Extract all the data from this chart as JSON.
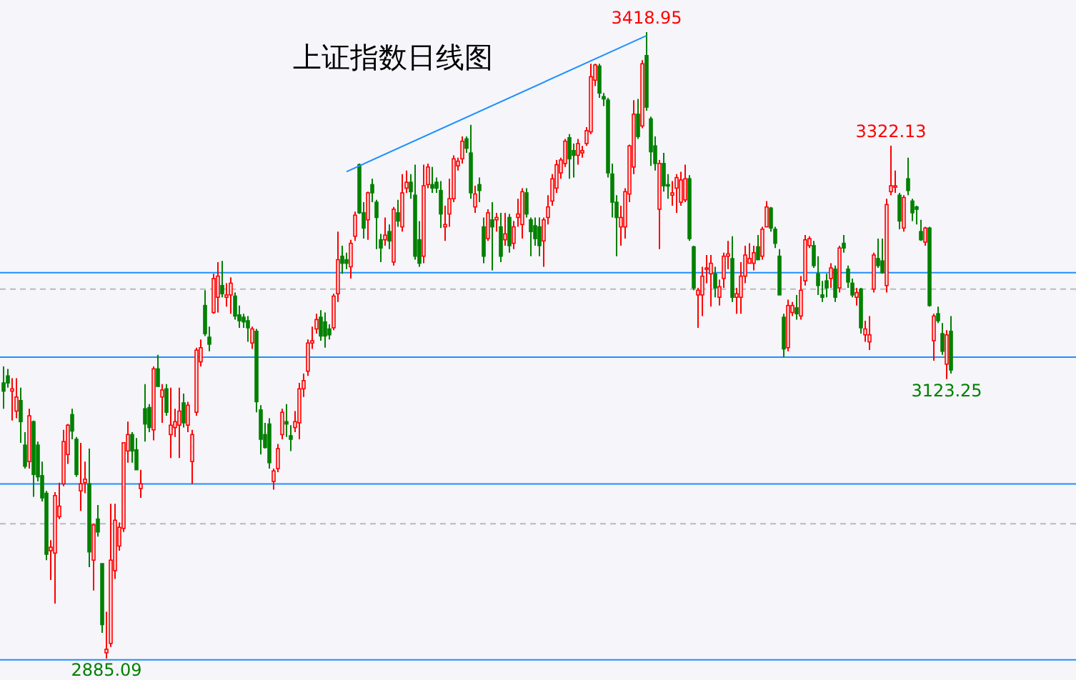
{
  "chart_data": {
    "type": "candlestick",
    "title": "上证指数日线图",
    "categories": [
      null,
      null,
      null,
      null,
      null,
      null,
      null,
      null,
      null,
      null,
      null,
      null,
      null,
      null,
      null,
      null,
      null,
      null,
      null,
      null,
      null,
      null,
      null,
      null,
      null,
      null,
      null,
      null,
      null,
      null,
      null,
      null,
      null,
      null,
      null,
      null,
      null,
      null,
      null,
      null,
      null,
      null,
      null,
      null,
      null,
      null,
      null,
      null,
      null,
      null,
      null,
      null,
      null,
      null,
      null,
      null,
      null,
      null,
      null,
      null,
      null,
      null,
      null,
      null,
      null,
      null,
      null,
      null,
      null,
      null,
      null,
      null,
      null,
      null,
      null,
      null,
      null,
      null,
      null,
      null,
      null,
      null,
      null,
      null,
      null,
      null,
      null,
      null,
      null,
      null,
      null,
      null,
      null,
      null,
      null,
      null,
      null,
      null,
      null,
      null,
      null,
      null,
      null,
      null,
      null,
      null,
      null,
      null,
      null,
      null,
      null,
      null,
      null,
      null,
      null,
      null,
      null,
      null,
      null,
      null,
      null,
      null,
      null,
      null,
      null,
      null,
      null,
      null,
      null,
      null,
      null,
      null,
      null,
      null,
      null,
      null,
      null,
      null,
      null,
      null,
      null,
      null,
      null,
      null,
      null,
      null,
      null,
      null,
      null,
      null,
      null,
      null,
      null,
      null,
      null,
      null,
      null,
      null,
      null,
      null,
      null,
      null,
      null,
      null,
      null,
      null,
      null,
      null,
      null,
      null,
      null,
      null,
      null,
      null,
      null,
      null,
      null,
      null,
      null,
      null,
      null,
      null,
      null,
      null,
      null,
      null,
      null,
      null,
      null,
      null,
      null,
      null,
      null,
      null,
      null,
      null,
      null,
      null,
      null,
      null,
      null,
      null,
      null,
      null,
      null,
      null,
      null,
      null,
      null,
      null,
      null,
      null,
      null,
      null,
      null,
      null,
      null,
      null,
      null,
      null,
      null,
      null
    ],
    "ohlc": [
      [
        3120,
        3134,
        3098,
        3113
      ],
      [
        3126,
        3132,
        3116,
        3120
      ],
      [
        3113,
        3124,
        3088,
        3115
      ],
      [
        3096,
        3124,
        3090,
        3108
      ],
      [
        3105,
        3116,
        3069,
        3087
      ],
      [
        3067,
        3078,
        3047,
        3049
      ],
      [
        3053,
        3098,
        3047,
        3092
      ],
      [
        3087,
        3088,
        3023,
        3042
      ],
      [
        3067,
        3070,
        3036,
        3040
      ],
      [
        3041,
        3053,
        3019,
        3022
      ],
      [
        3026,
        3028,
        2969,
        2974
      ],
      [
        2977,
        2986,
        2952,
        2980
      ],
      [
        2975,
        3027,
        2932,
        3024
      ],
      [
        3006,
        3035,
        3004,
        3015
      ],
      [
        3034,
        3080,
        3032,
        3070
      ],
      [
        3059,
        3085,
        3051,
        3084
      ],
      [
        3093,
        3098,
        3072,
        3079
      ],
      [
        3072,
        3074,
        3040,
        3042
      ],
      [
        3028,
        3069,
        3011,
        3034
      ],
      [
        3035,
        3053,
        3026,
        3038
      ],
      [
        3034,
        3064,
        2963,
        2976
      ],
      [
        2969,
        3000,
        2943,
        2999
      ],
      [
        3004,
        3016,
        2989,
        2993
      ],
      [
        2966,
        2966,
        2907,
        2914
      ],
      [
        2890,
        2925,
        2885.09,
        2893
      ],
      [
        2898,
        3017,
        2895,
        2969
      ],
      [
        2960,
        3017,
        2953,
        3003
      ],
      [
        2981,
        3001,
        2977,
        2997
      ],
      [
        2996,
        3069,
        2993,
        3069
      ],
      [
        3062,
        3087,
        3052,
        3076
      ],
      [
        3076,
        3078,
        3052,
        3062
      ],
      [
        3063,
        3073,
        3046,
        3046
      ],
      [
        3030,
        3046,
        3022,
        3034
      ],
      [
        3098,
        3119,
        3070,
        3085
      ],
      [
        3099,
        3102,
        3078,
        3082
      ],
      [
        3080,
        3134,
        3071,
        3132
      ],
      [
        3132,
        3144,
        3117,
        3117
      ],
      [
        3108,
        3119,
        3086,
        3114
      ],
      [
        3115,
        3119,
        3092,
        3095
      ],
      [
        3076,
        3116,
        3056,
        3084
      ],
      [
        3082,
        3098,
        3074,
        3087
      ],
      [
        3084,
        3116,
        3056,
        3096
      ],
      [
        3103,
        3111,
        3082,
        3086
      ],
      [
        3084,
        3104,
        3078,
        3101
      ],
      [
        3053,
        3080,
        3034,
        3076
      ],
      [
        3095,
        3150,
        3092,
        3148
      ],
      [
        3138,
        3157,
        3134,
        3150
      ],
      [
        3186,
        3199,
        3160,
        3162
      ],
      [
        3159,
        3168,
        3147,
        3153
      ],
      [
        3180,
        3213,
        3179,
        3209
      ],
      [
        3193,
        3223,
        3180,
        3211
      ],
      [
        3203,
        3224,
        3193,
        3196
      ],
      [
        3193,
        3205,
        3185,
        3195
      ],
      [
        3195,
        3210,
        3179,
        3205
      ],
      [
        3194,
        3197,
        3174,
        3177
      ],
      [
        3178,
        3186,
        3167,
        3173
      ],
      [
        3176,
        3179,
        3167,
        3172
      ],
      [
        3173,
        3177,
        3155,
        3167
      ],
      [
        3154,
        3168,
        3149,
        3166
      ],
      [
        3164,
        3166,
        3095,
        3104
      ],
      [
        3097,
        3101,
        3059,
        3072
      ],
      [
        3076,
        3086,
        3064,
        3065
      ],
      [
        3085,
        3090,
        3047,
        3052
      ],
      [
        3036,
        3047,
        3029,
        3045
      ],
      [
        3047,
        3068,
        3044,
        3064
      ],
      [
        3076,
        3098,
        3072,
        3095
      ],
      [
        3087,
        3102,
        3074,
        3085
      ],
      [
        3075,
        3084,
        3062,
        3072
      ],
      [
        3082,
        3096,
        3078,
        3087
      ],
      [
        3086,
        3120,
        3072,
        3115
      ],
      [
        3115,
        3128,
        3108,
        3122
      ],
      [
        3130,
        3157,
        3126,
        3154
      ],
      [
        3154,
        3168,
        3149,
        3156
      ],
      [
        3166,
        3179,
        3162,
        3174
      ],
      [
        3176,
        3182,
        3156,
        3160
      ],
      [
        3172,
        3180,
        3150,
        3160
      ],
      [
        3166,
        3170,
        3157,
        3161
      ],
      [
        3167,
        3196,
        3165,
        3194
      ],
      [
        3196,
        3249,
        3189,
        3225
      ],
      [
        3228,
        3237,
        3213,
        3222
      ],
      [
        3225,
        3231,
        3217,
        3222
      ],
      [
        3219,
        3242,
        3209,
        3239
      ],
      [
        3245,
        3266,
        3241,
        3263
      ],
      [
        3306,
        3307,
        3264,
        3265
      ],
      [
        3265,
        3274,
        3243,
        3252
      ],
      [
        3259,
        3283,
        3242,
        3282
      ],
      [
        3289,
        3294,
        3274,
        3282
      ],
      [
        3274,
        3276,
        3234,
        3261
      ],
      [
        3242,
        3247,
        3223,
        3235
      ],
      [
        3242,
        3261,
        3237,
        3246
      ],
      [
        3249,
        3255,
        3234,
        3241
      ],
      [
        3223,
        3270,
        3220,
        3268
      ],
      [
        3265,
        3276,
        3253,
        3258
      ],
      [
        3253,
        3298,
        3249,
        3282
      ],
      [
        3286,
        3301,
        3282,
        3291
      ],
      [
        3291,
        3298,
        3277,
        3283
      ],
      [
        3280,
        3306,
        3225,
        3228
      ],
      [
        3242,
        3258,
        3219,
        3222
      ],
      [
        3228,
        3306,
        3222,
        3288
      ],
      [
        3289,
        3307,
        3286,
        3304
      ],
      [
        3289,
        3304,
        3282,
        3286
      ],
      [
        3291,
        3295,
        3282,
        3286
      ],
      [
        3284,
        3292,
        3252,
        3264
      ],
      [
        3253,
        3271,
        3241,
        3255
      ],
      [
        3264,
        3294,
        3253,
        3277
      ],
      [
        3277,
        3314,
        3274,
        3311
      ],
      [
        3305,
        3312,
        3301,
        3309
      ],
      [
        3311,
        3330,
        3307,
        3326
      ],
      [
        3328,
        3330,
        3316,
        3320
      ],
      [
        3316,
        3340,
        3277,
        3282
      ],
      [
        3270,
        3288,
        3265,
        3281
      ],
      [
        3289,
        3295,
        3274,
        3284
      ],
      [
        3253,
        3261,
        3222,
        3228
      ],
      [
        3243,
        3268,
        3241,
        3265
      ],
      [
        3259,
        3274,
        3216,
        3253
      ],
      [
        3259,
        3265,
        3249,
        3261
      ],
      [
        3253,
        3265,
        3223,
        3228
      ],
      [
        3242,
        3265,
        3237,
        3247
      ],
      [
        3261,
        3264,
        3231,
        3237
      ],
      [
        3239,
        3258,
        3234,
        3253
      ],
      [
        3261,
        3277,
        3253,
        3264
      ],
      [
        3255,
        3286,
        3243,
        3283
      ],
      [
        3282,
        3286,
        3261,
        3264
      ],
      [
        3259,
        3261,
        3228,
        3249
      ],
      [
        3254,
        3261,
        3237,
        3243
      ],
      [
        3253,
        3261,
        3228,
        3237
      ],
      [
        3241,
        3261,
        3219,
        3259
      ],
      [
        3261,
        3280,
        3255,
        3270
      ],
      [
        3275,
        3298,
        3271,
        3294
      ],
      [
        3286,
        3310,
        3282,
        3306
      ],
      [
        3299,
        3312,
        3294,
        3310
      ],
      [
        3307,
        3328,
        3304,
        3326
      ],
      [
        3329,
        3332,
        3294,
        3311
      ],
      [
        3318,
        3324,
        3295,
        3314
      ],
      [
        3314,
        3328,
        3306,
        3324
      ],
      [
        3316,
        3322,
        3312,
        3318
      ],
      [
        3324,
        3338,
        3322,
        3335
      ],
      [
        3334,
        3392,
        3332,
        3381
      ],
      [
        3378,
        3392,
        3373,
        3391
      ],
      [
        3390,
        3392,
        3363,
        3367
      ],
      [
        3364,
        3367,
        3356,
        3362
      ],
      [
        3361,
        3363,
        3295,
        3299
      ],
      [
        3298,
        3307,
        3261,
        3274
      ],
      [
        3274,
        3280,
        3228,
        3261
      ],
      [
        3253,
        3271,
        3237,
        3261
      ],
      [
        3253,
        3286,
        3243,
        3283
      ],
      [
        3281,
        3323,
        3274,
        3322
      ],
      [
        3304,
        3361,
        3298,
        3349
      ],
      [
        3349,
        3362,
        3328,
        3330
      ],
      [
        3339,
        3395,
        3337,
        3392
      ],
      [
        3399,
        3418.95,
        3352,
        3355
      ],
      [
        3345,
        3347,
        3305,
        3317
      ],
      [
        3322,
        3330,
        3301,
        3307
      ],
      [
        3268,
        3310,
        3234,
        3307
      ],
      [
        3307,
        3316,
        3283,
        3288
      ],
      [
        3289,
        3298,
        3277,
        3288
      ],
      [
        3280,
        3292,
        3271,
        3282
      ],
      [
        3286,
        3298,
        3265,
        3295
      ],
      [
        3274,
        3300,
        3271,
        3293
      ],
      [
        3276,
        3306,
        3274,
        3294
      ],
      [
        3294,
        3297,
        3241,
        3243
      ],
      [
        3236,
        3237,
        3199,
        3201
      ],
      [
        3195,
        3201,
        3167,
        3199
      ],
      [
        3195,
        3219,
        3177,
        3211
      ],
      [
        3217,
        3229,
        3205,
        3218
      ],
      [
        3213,
        3229,
        3185,
        3222
      ],
      [
        3213,
        3219,
        3193,
        3201
      ],
      [
        3193,
        3208,
        3186,
        3202
      ],
      [
        3209,
        3231,
        3201,
        3228
      ],
      [
        3228,
        3241,
        3217,
        3230
      ],
      [
        3226,
        3245,
        3189,
        3193
      ],
      [
        3193,
        3201,
        3179,
        3196
      ],
      [
        3193,
        3223,
        3179,
        3211
      ],
      [
        3211,
        3237,
        3205,
        3229
      ],
      [
        3222,
        3239,
        3222,
        3226
      ],
      [
        3222,
        3237,
        3216,
        3231
      ],
      [
        3236,
        3246,
        3225,
        3225
      ],
      [
        3228,
        3253,
        3225,
        3251
      ],
      [
        3253,
        3275,
        3253,
        3270
      ],
      [
        3269,
        3270,
        3249,
        3252
      ],
      [
        3251,
        3253,
        3235,
        3239
      ],
      [
        3228,
        3234,
        3195,
        3195
      ],
      [
        3176,
        3179,
        3142,
        3149
      ],
      [
        3150,
        3191,
        3147,
        3186
      ],
      [
        3180,
        3189,
        3177,
        3186
      ],
      [
        3184,
        3195,
        3174,
        3179
      ],
      [
        3177,
        3211,
        3174,
        3199
      ],
      [
        3207,
        3246,
        3203,
        3242
      ],
      [
        3237,
        3245,
        3235,
        3243
      ],
      [
        3237,
        3241,
        3218,
        3220
      ],
      [
        3213,
        3228,
        3195,
        3203
      ],
      [
        3195,
        3207,
        3189,
        3193
      ],
      [
        3207,
        3213,
        3193,
        3201
      ],
      [
        3209,
        3222,
        3201,
        3218
      ],
      [
        3217,
        3220,
        3189,
        3193
      ],
      [
        3201,
        3237,
        3197,
        3235
      ],
      [
        3239,
        3246,
        3231,
        3235
      ],
      [
        3217,
        3220,
        3201,
        3206
      ],
      [
        3205,
        3209,
        3193,
        3195
      ],
      [
        3193,
        3201,
        3186,
        3197
      ],
      [
        3200,
        3201,
        3162,
        3167
      ],
      [
        3161,
        3173,
        3155,
        3166
      ],
      [
        3155,
        3177,
        3148,
        3161
      ],
      [
        3200,
        3231,
        3197,
        3229
      ],
      [
        3226,
        3243,
        3218,
        3220
      ],
      [
        3224,
        3243,
        3213,
        3214
      ],
      [
        3203,
        3277,
        3197,
        3272
      ],
      [
        3283,
        3322.13,
        3280,
        3288
      ],
      [
        3287,
        3301,
        3282,
        3288
      ],
      [
        3280,
        3282,
        3251,
        3258
      ],
      [
        3252,
        3280,
        3249,
        3278
      ],
      [
        3294,
        3312,
        3280,
        3284
      ],
      [
        3275,
        3277,
        3258,
        3265
      ],
      [
        3270,
        3271,
        3255,
        3268
      ],
      [
        3249,
        3259,
        3241,
        3242
      ],
      [
        3240,
        3253,
        3237,
        3252
      ],
      [
        3252,
        3253,
        3185,
        3186
      ],
      [
        3156,
        3179,
        3139,
        3177
      ],
      [
        3179,
        3185,
        3171,
        3173
      ],
      [
        3162,
        3171,
        3144,
        3147
      ],
      [
        3136,
        3165,
        3123.25,
        3161
      ],
      [
        3164,
        3177,
        3128,
        3131
      ]
    ],
    "series": [
      {
        "type": "line",
        "color": "#1e90ff",
        "values": [
          null,
          null,
          null,
          null,
          null,
          null,
          null,
          null,
          null,
          null,
          null,
          null,
          null,
          null,
          null,
          null,
          null,
          null,
          null,
          null,
          null,
          null,
          null,
          null,
          null,
          null,
          null,
          null,
          null,
          null,
          null,
          null,
          null,
          null,
          null,
          null,
          null,
          null,
          null,
          null,
          null,
          null,
          null,
          null,
          null,
          null,
          null,
          null,
          null,
          null,
          null,
          null,
          null,
          null,
          null,
          null,
          null,
          null,
          null,
          null,
          null,
          null,
          null,
          null,
          null,
          null,
          null,
          null,
          null,
          null,
          null,
          null,
          null,
          null,
          null,
          null,
          null,
          null,
          null,
          null,
          3300,
          null,
          null,
          null,
          null,
          null,
          null,
          null,
          null,
          null,
          null,
          null,
          null,
          null,
          null,
          null,
          null,
          null,
          null,
          null,
          null,
          null,
          null,
          null,
          null,
          null,
          null,
          null,
          null,
          null,
          null,
          null,
          null,
          null,
          null,
          null,
          null,
          null,
          null,
          null,
          null,
          null,
          null,
          null,
          null,
          null,
          null,
          null,
          null,
          null,
          null,
          null,
          null,
          null,
          null,
          null,
          null,
          null,
          null,
          null,
          null,
          null,
          null,
          null,
          null,
          null,
          null,
          null,
          null,
          null,
          3416,
          null,
          null,
          null,
          null,
          null,
          null,
          null,
          null,
          null,
          null,
          null,
          null,
          null,
          null,
          null,
          null,
          null,
          null,
          null,
          null,
          null,
          null,
          null,
          null,
          null,
          null,
          null,
          null,
          null,
          null,
          null,
          null,
          null,
          null,
          null,
          null,
          null,
          null,
          null,
          null,
          null,
          null,
          null,
          null,
          null,
          null,
          null,
          null,
          null,
          null,
          null,
          null,
          null,
          null,
          null,
          null,
          null,
          null,
          null,
          null,
          null,
          null,
          null,
          null,
          null,
          null,
          null,
          null,
          null,
          null,
          null
        ]
      }
    ],
    "ref_lines": [
      {
        "axis": "y",
        "value": 3214,
        "color": "#1e90ff"
      },
      {
        "axis": "y",
        "value": 3142,
        "color": "#1e90ff"
      },
      {
        "axis": "y",
        "value": 3034,
        "color": "#1e90ff"
      },
      {
        "axis": "y",
        "value": 2884,
        "color": "#1e90ff"
      }
    ],
    "annotations": [
      {
        "text": "3418.95",
        "y": 3418.95
      },
      {
        "text": "3322.13",
        "y": 3322.13
      },
      {
        "text": "3123.25",
        "y": 3123.25
      },
      {
        "text": "2885.09",
        "y": 2885.09
      }
    ],
    "yticks": [
      {
        "value": 3000,
        "label": null
      },
      {
        "value": 3200,
        "label": null
      }
    ],
    "grid": "y"
  }
}
